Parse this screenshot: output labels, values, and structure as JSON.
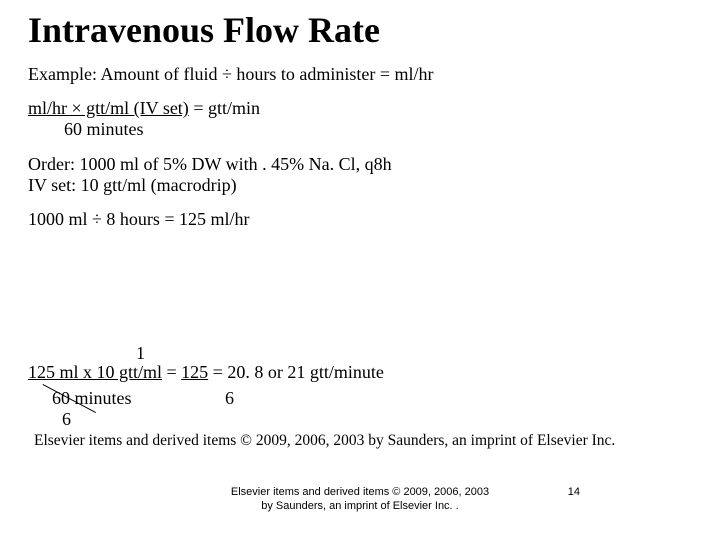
{
  "title": "Intravenous Flow Rate",
  "example_label": "Example:  Amount of fluid ÷ hours to administer = ml/hr",
  "formula": {
    "numerator": "ml/hr × gtt/ml (IV set)",
    "equals_rhs": " = gtt/min",
    "denominator": "60 minutes"
  },
  "order_line": "Order: 1000 ml of 5% DW with . 45% Na. Cl, q8h",
  "ivset_line": "IV set: 10 gtt/ml (macrodrip)",
  "step1": "1000 ml ÷ 8 hours = 125 ml/hr",
  "calc": {
    "top_1": "1",
    "lhs_underlined": "125 ml x 10 gtt/ml",
    "mid": "  =  ",
    "rhs_125_underlined": "125",
    "rhs_rest": " = 20. 8 or 21 gtt/minute",
    "denom_60": "60 minutes",
    "denom_6a": "6",
    "denom_6b": "6"
  },
  "copyright_main": "Elsevier items and derived items © 2009, 2006, 2003 by Saunders, an imprint of  Elsevier Inc.",
  "footer_center": "Elsevier items and derived items © 2009, 2006, 2003 by Saunders, an imprint of Elsevier Inc. .",
  "page_number": "14",
  "colors": {
    "background": "#ffffff",
    "text": "#000000"
  },
  "fonts": {
    "title_size_pt": 36,
    "body_size_pt": 18,
    "footer_size_pt": 11,
    "title_weight": "bold",
    "body_family": "Times New Roman",
    "footer_family": "Arial"
  }
}
